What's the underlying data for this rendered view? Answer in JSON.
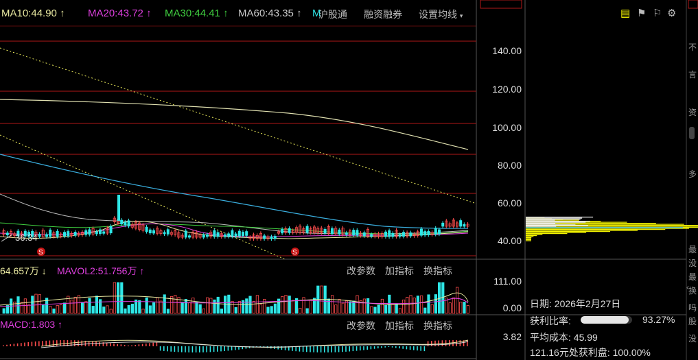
{
  "ma_line": [
    {
      "label": "MA10:44.90",
      "arrow": "↑",
      "color": "#e8e8a0"
    },
    {
      "label": "MA20:43.72",
      "arrow": "↑",
      "color": "#e040e0"
    },
    {
      "label": "MA30:44.41",
      "arrow": "↑",
      "color": "#40d040"
    },
    {
      "label": "MA60:43.35",
      "arrow": "↑",
      "color": "#cccccc"
    }
  ],
  "menu": {
    "hgt": "沪股通",
    "margin": "融资融券",
    "ma_settings": "设置均线"
  },
  "price_axis": [
    "140.00",
    "120.00",
    "100.00",
    "80.00",
    "60.00",
    "40.00"
  ],
  "low_marker": "36.34",
  "vol_panel": {
    "mavol1": "64.657万",
    "mavol1_arrow": "↓",
    "mavol2": "MAVOL2:51.756万",
    "mavol2_arrow": "↑",
    "axis_top": "111.00",
    "axis_bottom": "0.00"
  },
  "panel_buttons": {
    "edit_params": "改参数",
    "add_indicator": "加指标",
    "switch_indicator": "换指标"
  },
  "macd_panel": {
    "label": "MACD:1.803",
    "arrow": "↑",
    "axis_value": "3.82"
  },
  "chip_info": {
    "date_label": "日期:",
    "date_value": "2026年2月27日",
    "profit_ratio_label": "获利比率:",
    "profit_ratio_value": "93.27%",
    "profit_ratio_fill": 0.9327,
    "avg_cost_label": "平均成本:",
    "avg_cost_value": "45.99",
    "profit_at_label": "121.16元处获利盘:",
    "profit_at_value": "100.00%"
  },
  "right_strip_chars": [
    "不",
    "言",
    "资",
    "多",
    "最",
    "没",
    "最",
    "换",
    "吗",
    "股",
    "没"
  ],
  "colors": {
    "ma10": "#e8e8a0",
    "ma20": "#e040e0",
    "ma30": "#40d040",
    "ma60": "#cccccc",
    "up": "#ff4d4d",
    "down": "#2ee6e6",
    "grid": "#b01818",
    "chip": "#f5f500"
  }
}
